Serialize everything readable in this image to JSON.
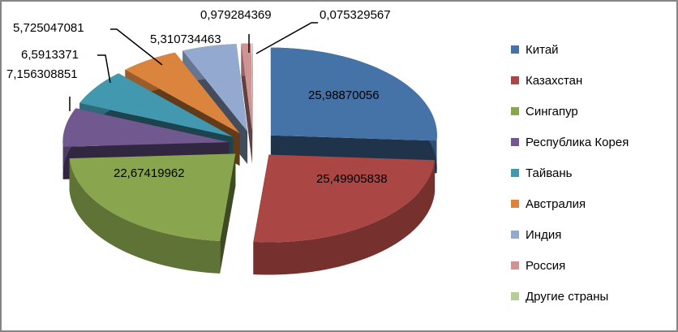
{
  "chart_data": {
    "type": "pie",
    "style": "3d-exploded",
    "categories": [
      "Китай",
      "Казахстан",
      "Сингапур",
      "Республика Корея",
      "Тайвань",
      "Австралия",
      "Индия",
      "Россия",
      "Другие страны"
    ],
    "values": [
      25.98870056,
      25.49905838,
      22.67419962,
      7.156308851,
      6.5913371,
      5.725047081,
      5.310734463,
      0.979284369,
      0.075329567
    ],
    "data_labels": [
      "25,98870056",
      "25,49905838",
      "22,67419962",
      "7,156308851",
      "6,5913371",
      "5,725047081",
      "5,310734463",
      "0,979284369",
      "0,075329567"
    ],
    "colors": [
      "#4572A7",
      "#AA4643",
      "#89A54E",
      "#71588F",
      "#4198AF",
      "#DB843D",
      "#93A9CF",
      "#D19392",
      "#B9CD96"
    ],
    "legend_position": "right"
  }
}
